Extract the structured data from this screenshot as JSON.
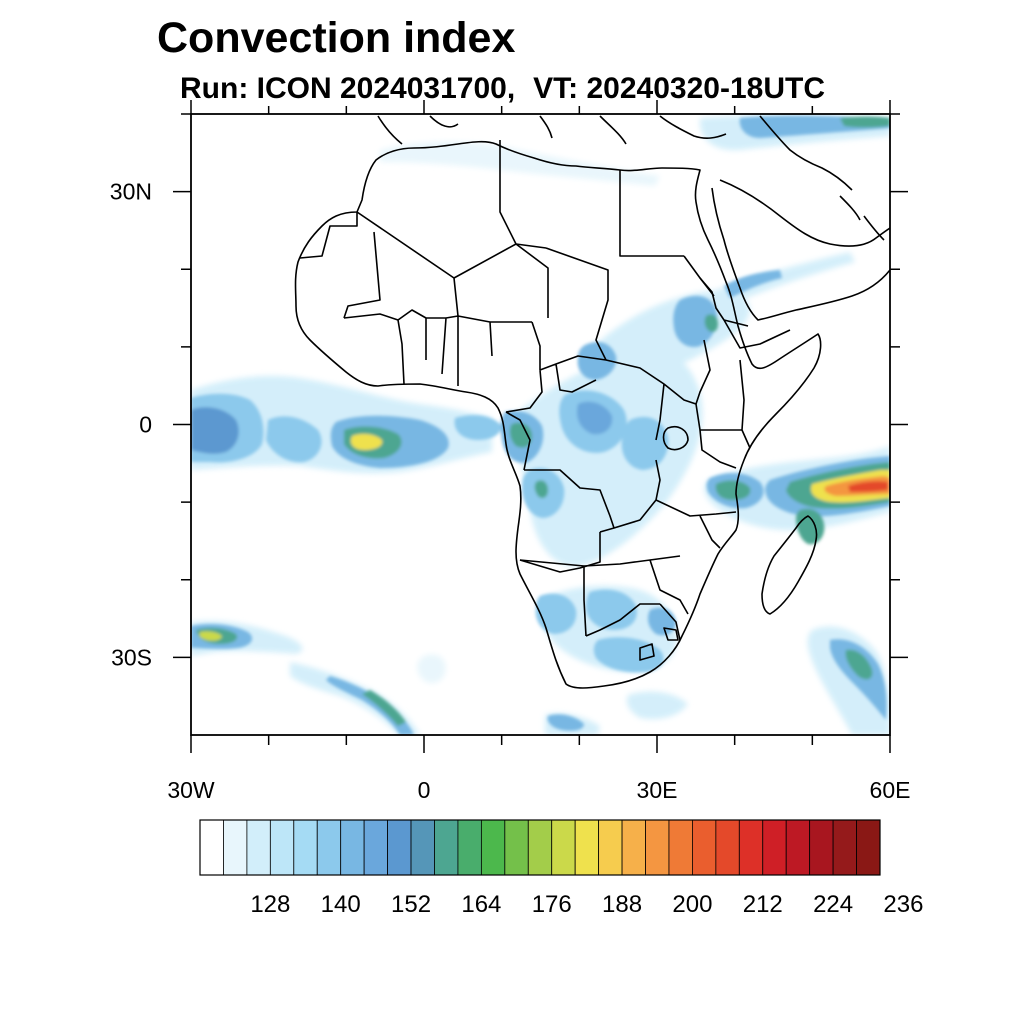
{
  "title": "Convection index",
  "subtitle": {
    "run": "Run: ICON 2024031700,",
    "valid_time": "VT: 20240320-18UTC"
  },
  "map": {
    "region": "Africa",
    "projection": "cylindrical-equidistant",
    "lon_range": [
      -30,
      60
    ],
    "lat_range": [
      -40,
      40
    ],
    "lon_ticks": [
      {
        "value": -30,
        "label": "30W"
      },
      {
        "value": 0,
        "label": "0"
      },
      {
        "value": 30,
        "label": "30E"
      },
      {
        "value": 60,
        "label": "60E"
      }
    ],
    "lat_ticks": [
      {
        "value": 30,
        "label": "30N"
      },
      {
        "value": 0,
        "label": "0"
      },
      {
        "value": -30,
        "label": "30S"
      }
    ]
  },
  "chart_data": {
    "type": "heatmap",
    "title": "Convection index",
    "variable": "convection index",
    "colorbar": {
      "levels": [
        128,
        140,
        152,
        164,
        176,
        188,
        200,
        212,
        224,
        236
      ],
      "level_labels": [
        "128",
        "140",
        "152",
        "164",
        "176",
        "188",
        "200",
        "212",
        "224",
        "236"
      ],
      "colors": [
        "#ffffff",
        "#e8f6fc",
        "#d2eefa",
        "#bde6f8",
        "#a5dbf4",
        "#8cc9ec",
        "#78b7e3",
        "#6aa7dc",
        "#5b98d0",
        "#5596b8",
        "#4da691",
        "#49ad6c",
        "#4cb84c",
        "#74c04a",
        "#a3cd4a",
        "#cbd94a",
        "#efe14d",
        "#f6cc4e",
        "#f6b04a",
        "#f49641",
        "#ef7a36",
        "#ea5e2e",
        "#e4492a",
        "#dd3028",
        "#cf1f26",
        "#bd1924",
        "#a8161f",
        "#951a1b",
        "#8a1815"
      ]
    },
    "features": [
      {
        "name": "equatorial Atlantic band",
        "lon": [
          -30,
          8
        ],
        "lat": [
          -6,
          5
        ],
        "max_value": 188
      },
      {
        "name": "Gulf of Guinea cluster",
        "lon": [
          -11,
          -4
        ],
        "lat": [
          -3,
          0
        ],
        "max_value": 188
      },
      {
        "name": "Central Africa / Congo basin",
        "lon": [
          10,
          32
        ],
        "lat": [
          -15,
          10
        ],
        "max_value": 170
      },
      {
        "name": "Ethiopian highlands / Red Sea",
        "lon": [
          25,
          42
        ],
        "lat": [
          8,
          18
        ],
        "max_value": 160
      },
      {
        "name": "Indian Ocean / Tanzania coast band",
        "lon": [
          38,
          60
        ],
        "lat": [
          -12,
          -3
        ],
        "max_value": 215
      },
      {
        "name": "Southern Africa",
        "lon": [
          14,
          34
        ],
        "lat": [
          -32,
          -20
        ],
        "max_value": 150
      },
      {
        "name": "South Atlantic frontal band",
        "lon": [
          -30,
          -2
        ],
        "lat": [
          -40,
          -26
        ],
        "max_value": 180
      },
      {
        "name": "SE of Madagascar",
        "lon": [
          48,
          60
        ],
        "lat": [
          -38,
          -25
        ],
        "max_value": 170
      }
    ]
  }
}
